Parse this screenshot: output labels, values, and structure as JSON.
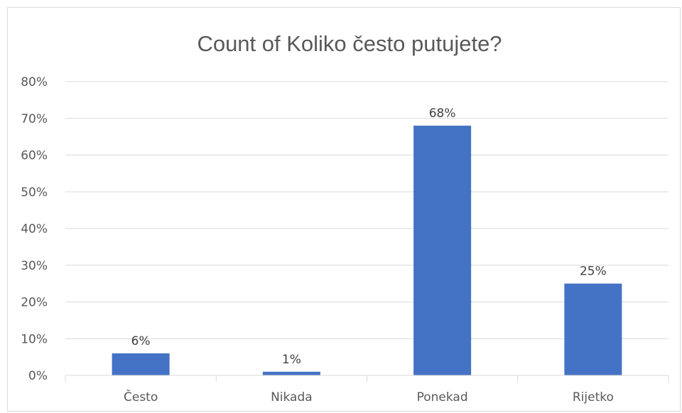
{
  "chart_data": {
    "type": "bar",
    "title": "Count of Koliko često putujete?",
    "xlabel": "",
    "ylabel": "",
    "categories": [
      "Često",
      "Nikada",
      "Ponekad",
      "Rijetko"
    ],
    "values": [
      6,
      1,
      68,
      25
    ],
    "value_labels": [
      "6%",
      "1%",
      "68%",
      "25%"
    ],
    "ylim": [
      0,
      80
    ],
    "yticks": [
      0,
      10,
      20,
      30,
      40,
      50,
      60,
      70,
      80
    ],
    "ytick_labels": [
      "0%",
      "10%",
      "20%",
      "30%",
      "40%",
      "50%",
      "60%",
      "70%",
      "80%"
    ],
    "grid": true,
    "legend": "none",
    "bar_color": "#4472C4"
  }
}
